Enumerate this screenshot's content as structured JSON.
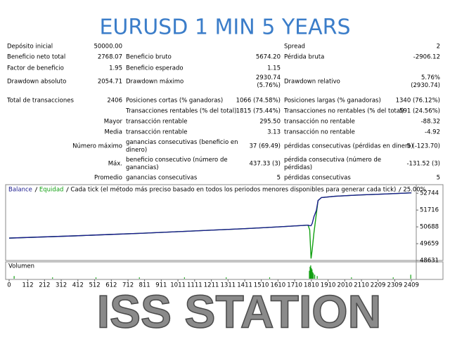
{
  "header": {
    "title": "EURUSD 1 MIN 5 YEARS"
  },
  "report": {
    "rows": [
      [
        "Depósito inicial",
        "50000.00",
        null,
        null,
        "Spread",
        "2"
      ],
      [
        "Beneficio neto total",
        "2768.07",
        "Beneficio bruto",
        "5674.20",
        "Pérdida bruta",
        "-2906.12"
      ],
      [
        "Factor de beneficio",
        "1.95",
        "Beneficio esperado",
        "1.15",
        null,
        null
      ],
      [
        "Drawdown absoluto",
        "2054.71",
        "Drawdown máximo",
        [
          "2930.74",
          "(5.76%)"
        ],
        "Drawdown relativo",
        [
          "5.76%",
          "(2930.74)"
        ]
      ],
      [
        "Total de transacciones",
        "2406",
        "Posiciones cortas (% ganadoras)",
        "1066 (74.58%)",
        "Posiciones largas (% ganadoras)",
        "1340 (76.12%)"
      ],
      [
        null,
        null,
        "Transacciones rentables (% del total)",
        "1815 (75.44%)",
        "Transacciones no rentables (% del total)",
        "591 (24.56%)"
      ],
      [
        null,
        "Mayor",
        "transacción rentable",
        "295.50",
        "transacción no rentable",
        "-88.32"
      ],
      [
        null,
        "Media",
        "transacción rentable",
        "3.13",
        "transacción no rentable",
        "-4.92"
      ],
      [
        null,
        "Número máximo",
        [
          "ganancias consecutivas (beneficio en",
          "dinero)"
        ],
        "37 (69.49)",
        "pérdidas consecutivas (pérdidas en dinero)",
        "5 (-123.70)"
      ],
      [
        null,
        "Máx.",
        [
          "beneficio consecutivo (número de",
          "ganancias)"
        ],
        "437.33 (3)",
        [
          "pérdida consecutiva (número de",
          "pérdidas)"
        ],
        "-131.52 (3)"
      ],
      [
        null,
        "Promedio",
        "ganancias consecutivas",
        "5",
        "pérdidas consecutivas",
        "5"
      ]
    ]
  },
  "chart_data": {
    "type": "line",
    "model": "Cada tick (el método más preciso basado en todos los periodos menores disponibles para generar cada tick)",
    "quality": "25.00%",
    "x": [
      0,
      200,
      400,
      600,
      800,
      1000,
      1200,
      1400,
      1600,
      1790,
      1800,
      1808,
      1815,
      1825,
      1840,
      1850,
      1870,
      1950,
      2100,
      2250,
      2409
    ],
    "series": [
      {
        "name": "Balance",
        "color": "#1c1c8f",
        "values": [
          50000,
          50070,
          50140,
          50220,
          50300,
          50390,
          50480,
          50570,
          50680,
          50790,
          50760,
          50760,
          50900,
          51300,
          51700,
          52300,
          52480,
          52560,
          52640,
          52700,
          52768
        ]
      },
      {
        "name": "Equidad",
        "color": "#11a011",
        "values": [
          50000,
          50070,
          50140,
          50220,
          50300,
          50390,
          50480,
          50570,
          50680,
          50790,
          50500,
          48750,
          49300,
          50300,
          51500,
          52300,
          52480,
          52560,
          52640,
          52700,
          52768
        ]
      }
    ],
    "xlim": [
      -21,
      2438
    ],
    "xticks": [
      0,
      112,
      212,
      312,
      412,
      512,
      612,
      712,
      811,
      911,
      1011,
      1111,
      1211,
      1311,
      1411,
      1510,
      1610,
      1710,
      1810,
      1910,
      2010,
      2110,
      2209,
      2309,
      2409
    ],
    "ylim": [
      48631,
      53270
    ],
    "yticks": [
      48631,
      49659,
      50688,
      51716,
      52744
    ],
    "grid": false,
    "volume": {
      "label": "Volumen",
      "color": "#11a011",
      "x": [
        30,
        260,
        520,
        780,
        1050,
        1300,
        1560,
        1798,
        1802,
        1806,
        1810,
        1814,
        1818,
        1822,
        1830,
        1845,
        2050,
        2300,
        2405
      ],
      "values": [
        2,
        1,
        1,
        1,
        1,
        1,
        1,
        6,
        9,
        10,
        8,
        7,
        5,
        4,
        3,
        2,
        1,
        1,
        3
      ],
      "vlim": [
        0,
        10
      ]
    },
    "watermark": "ISS STATION"
  }
}
